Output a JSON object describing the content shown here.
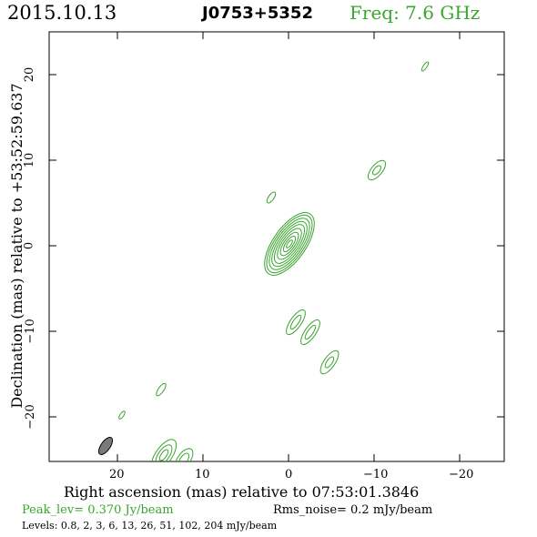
{
  "header": {
    "date": "2015.10.13",
    "source": "J0753+5352",
    "freq": "Freq: 7.6 GHz"
  },
  "axes": {
    "xlabel": "Right ascension (mas) relative to 07:53:01.3846",
    "ylabel": "Declination (mas) relative to +53:52:59.637",
    "x_ticks": [
      "20",
      "10",
      "0",
      "−10",
      "−20"
    ],
    "y_ticks": [
      "20",
      "10",
      "0",
      "−10",
      "−20"
    ]
  },
  "footer": {
    "peak": "Peak_lev=  0.370 Jy/beam",
    "rms": "Rms_noise=  0.2 mJy/beam",
    "levels": "Levels: 0.8,   2,   3,   6,  13,  26,  51, 102, 204 mJy/beam"
  },
  "colors": {
    "contour": "#3aa52f",
    "beam": "#7a7a7a",
    "axes": "#000000"
  }
}
